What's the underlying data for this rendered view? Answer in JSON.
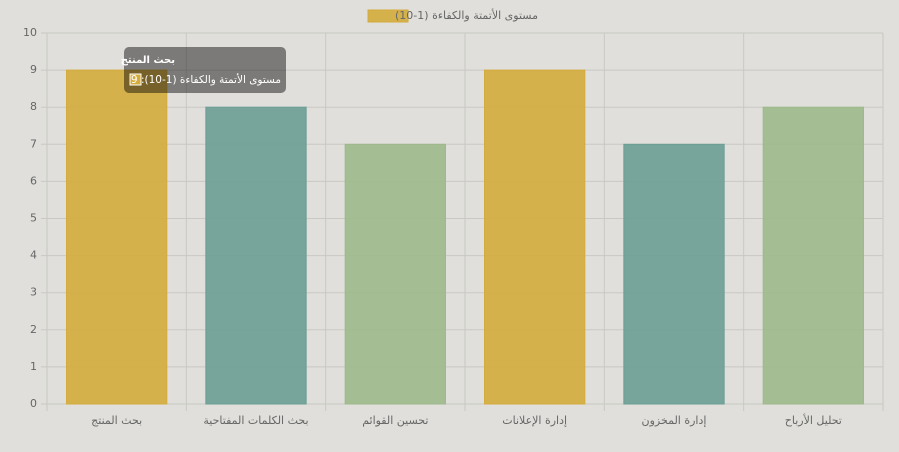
{
  "chart_data": {
    "type": "bar",
    "categories": [
      "بحث المنتج",
      "بحث الكلمات المفتاحية",
      "تحسين القوائم",
      "إدارة الإعلانات",
      "إدارة المخزون",
      "تحليل الأرباح"
    ],
    "series": [
      {
        "name": "مستوى الأتمتة والكفاءة (1-10)",
        "color": "#d4ac3c",
        "colors": [
          "#d4ac3c",
          "#6b9e95",
          "#9db98b",
          "#d4ac3c",
          "#6b9e95",
          "#9db98b"
        ],
        "values": [
          9,
          8,
          7,
          9,
          7,
          8
        ]
      }
    ],
    "ylim": [
      0,
      10
    ],
    "yticks": [
      0,
      1,
      2,
      3,
      4,
      5,
      6,
      7,
      8,
      9,
      10
    ],
    "grid": true,
    "legend": "top",
    "tooltip": {
      "title": "بحث المنتج",
      "body": "مستوى الأتمتة والكفاءة (1-10): 9"
    }
  }
}
